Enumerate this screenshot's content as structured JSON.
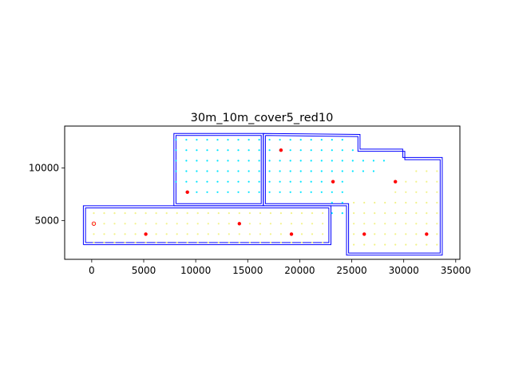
{
  "chart_data": {
    "type": "scatter",
    "title": "30m_10m_cover5_red10",
    "xlabel": "",
    "ylabel": "",
    "xlim": [
      -2600,
      35400
    ],
    "ylim": [
      1300,
      14000
    ],
    "xticks": [
      0,
      5000,
      10000,
      15000,
      20000,
      25000,
      30000,
      35000
    ],
    "xtick_labels": [
      "0",
      "5000",
      "10000",
      "15000",
      "20000",
      "25000",
      "30000",
      "35000"
    ],
    "yticks": [
      5000,
      10000
    ],
    "ytick_labels": [
      "5000",
      "10000"
    ],
    "grid": false,
    "legend": "none",
    "colors": {
      "boundary": "#0000ff",
      "cyan_points": "#00e5ff",
      "yellow_points": "#f2f28a",
      "red_points": "#ff0000"
    },
    "outlines": [
      {
        "name": "",
        "x": [
          -800,
          23000,
          23000,
          -800,
          -800
        ],
        "y": [
          2700,
          2700,
          6400,
          6400,
          2700
        ]
      },
      {
        "name": "",
        "x": [
          -600,
          22800,
          22800,
          -600,
          -600
        ],
        "y": [
          2900,
          2900,
          6200,
          6200,
          2900
        ]
      },
      {
        "name": "",
        "x": [
          7900,
          16500,
          16500,
          7900,
          7900
        ],
        "y": [
          6400,
          6400,
          13300,
          13300,
          6400
        ]
      },
      {
        "name": "",
        "x": [
          8100,
          16300,
          16300,
          8100,
          8100
        ],
        "y": [
          6600,
          6600,
          13100,
          13100,
          6600
        ]
      },
      {
        "name": "",
        "x": [
          16500,
          25800,
          25800,
          29900,
          29900,
          33700,
          33700,
          24500,
          24500,
          23000,
          23000,
          16500,
          16500
        ],
        "y": [
          13300,
          13200,
          11800,
          11800,
          11000,
          11000,
          1700,
          1700,
          6400,
          6400,
          6400,
          6400,
          13300
        ]
      },
      {
        "name": "",
        "x": [
          16700,
          25600,
          25600,
          30100,
          30100,
          33500,
          33500,
          24700,
          24700,
          16700,
          16700
        ],
        "y": [
          13100,
          13000,
          11600,
          11600,
          10800,
          10800,
          1900,
          1900,
          6600,
          6600,
          13100
        ]
      }
    ],
    "series": [
      {
        "name": "",
        "color": "#00e5ff",
        "x": [
          8100,
          9100,
          10100,
          11100,
          12100,
          13100,
          14100,
          15100,
          16100,
          8100,
          9100,
          10100,
          11100,
          12100,
          13100,
          14100,
          15100,
          16100,
          8100,
          9100,
          10100,
          11100,
          12100,
          13100,
          14100,
          15100,
          16100,
          8100,
          9100,
          10100,
          11100,
          12100,
          13100,
          14100,
          15100,
          16100,
          8100,
          9100,
          10100,
          11100,
          12100,
          13100,
          14100,
          15100,
          16100,
          9100,
          10100,
          11100,
          12100,
          13100,
          14100,
          15100,
          16100,
          17100,
          18100,
          19100,
          20100,
          21100,
          22100,
          23100,
          24100,
          17100,
          18100,
          19100,
          20100,
          21100,
          22100,
          23100,
          24100,
          25100,
          17100,
          18100,
          19100,
          20100,
          21100,
          22100,
          23100,
          24100,
          25100,
          26100,
          27100,
          28100,
          17100,
          18100,
          19100,
          20100,
          21100,
          22100,
          23100,
          24100,
          25100,
          26100,
          27100,
          17100,
          18100,
          19100,
          20100,
          21100,
          22100,
          23100,
          24100,
          17100,
          18100,
          19100,
          20100,
          21100,
          22100,
          23100,
          24100,
          23100,
          24100,
          23100,
          24100
        ],
        "y": [
          12700,
          12700,
          12700,
          12700,
          12700,
          12700,
          12700,
          12700,
          12700,
          11700,
          11700,
          11700,
          11700,
          11700,
          11700,
          11700,
          11700,
          11700,
          10700,
          10700,
          10700,
          10700,
          10700,
          10700,
          10700,
          10700,
          10700,
          9700,
          9700,
          9700,
          9700,
          9700,
          9700,
          9700,
          9700,
          9700,
          8700,
          8700,
          8700,
          8700,
          8700,
          8700,
          8700,
          8700,
          8700,
          7700,
          7700,
          7700,
          7700,
          7700,
          7700,
          7700,
          7700,
          12700,
          12700,
          12700,
          12700,
          12700,
          12700,
          12700,
          12700,
          11700,
          11700,
          11700,
          11700,
          11700,
          11700,
          11700,
          11700,
          11700,
          10700,
          10700,
          10700,
          10700,
          10700,
          10700,
          10700,
          10700,
          10700,
          10700,
          10700,
          10700,
          9700,
          9700,
          9700,
          9700,
          9700,
          9700,
          9700,
          9700,
          9700,
          9700,
          9700,
          8700,
          8700,
          8700,
          8700,
          8700,
          8700,
          8700,
          8700,
          7700,
          7700,
          7700,
          7700,
          7700,
          7700,
          7700,
          7700,
          6700,
          6700,
          5700,
          5700
        ]
      },
      {
        "name": "",
        "color": "#f2f28a",
        "x": [
          200,
          1200,
          2200,
          3200,
          4200,
          5200,
          6200,
          7200,
          8200,
          9200,
          10200,
          11200,
          12200,
          13200,
          14200,
          15200,
          16200,
          17200,
          18200,
          19200,
          20200,
          21200,
          22200,
          200,
          1200,
          2200,
          3200,
          4200,
          5200,
          6200,
          7200,
          8200,
          9200,
          10200,
          11200,
          12200,
          13200,
          14200,
          15200,
          16200,
          17200,
          18200,
          19200,
          20200,
          21200,
          22200,
          200,
          1200,
          2200,
          3200,
          4200,
          5200,
          6200,
          7200,
          8200,
          9200,
          10200,
          11200,
          12200,
          13200,
          14200,
          15200,
          16200,
          17200,
          18200,
          19200,
          20200,
          21200,
          22200,
          200,
          1200,
          2200,
          3200,
          4200,
          5200,
          6200,
          7200,
          8200,
          9200,
          10200,
          11200,
          12200,
          13200,
          14200,
          15200,
          16200,
          17200,
          18200,
          19200,
          20200,
          21200,
          22200,
          25200,
          26200,
          27200,
          28200,
          29200,
          30200,
          31200,
          32200,
          33200,
          25200,
          26200,
          27200,
          28200,
          29200,
          30200,
          31200,
          32200,
          33200,
          25200,
          26200,
          27200,
          28200,
          29200,
          30200,
          31200,
          32200,
          33200,
          25200,
          26200,
          27200,
          28200,
          29200,
          30200,
          31200,
          32200,
          33200,
          25200,
          26200,
          27200,
          28200,
          29200,
          30200,
          31200,
          32200,
          33200,
          29200,
          30200,
          31200,
          32200,
          33200,
          30200,
          31200,
          32200,
          33200,
          31200,
          32200,
          33200
        ],
        "y": [
          5700,
          5700,
          5700,
          5700,
          5700,
          5700,
          5700,
          5700,
          5700,
          5700,
          5700,
          5700,
          5700,
          5700,
          5700,
          5700,
          5700,
          5700,
          5700,
          5700,
          5700,
          5700,
          5700,
          4700,
          4700,
          4700,
          4700,
          4700,
          4700,
          4700,
          4700,
          4700,
          4700,
          4700,
          4700,
          4700,
          4700,
          4700,
          4700,
          4700,
          4700,
          4700,
          4700,
          4700,
          4700,
          4700,
          3700,
          3700,
          3700,
          3700,
          3700,
          3700,
          3700,
          3700,
          3700,
          3700,
          3700,
          3700,
          3700,
          3700,
          3700,
          3700,
          3700,
          3700,
          3700,
          3700,
          3700,
          3700,
          3700,
          2900,
          2900,
          2900,
          2900,
          2900,
          2900,
          2900,
          2900,
          2900,
          2900,
          2900,
          2900,
          2900,
          2900,
          2900,
          2900,
          2900,
          2900,
          2900,
          2900,
          2900,
          2900,
          2900,
          6700,
          6700,
          6700,
          6700,
          6700,
          6700,
          6700,
          6700,
          6700,
          5700,
          5700,
          5700,
          5700,
          5700,
          5700,
          5700,
          5700,
          5700,
          4700,
          4700,
          4700,
          4700,
          4700,
          4700,
          4700,
          4700,
          4700,
          3700,
          3700,
          3700,
          3700,
          3700,
          3700,
          3700,
          3700,
          3700,
          2700,
          2700,
          2700,
          2700,
          2700,
          2700,
          2700,
          2700,
          2700,
          7700,
          7700,
          7700,
          7700,
          7700,
          8700,
          8700,
          8700,
          8700,
          9700,
          9700,
          9700
        ]
      },
      {
        "name": "",
        "color": "#ff0000",
        "x": [
          200,
          5200,
          9200,
          14200,
          18200,
          19200,
          23200,
          26200,
          29200,
          32200
        ],
        "y": [
          4700,
          3700,
          7700,
          4700,
          11700,
          3700,
          8700,
          3700,
          8700,
          3700
        ],
        "hollow": [
          true,
          false,
          false,
          false,
          false,
          false,
          false,
          false,
          false,
          false
        ]
      }
    ]
  }
}
